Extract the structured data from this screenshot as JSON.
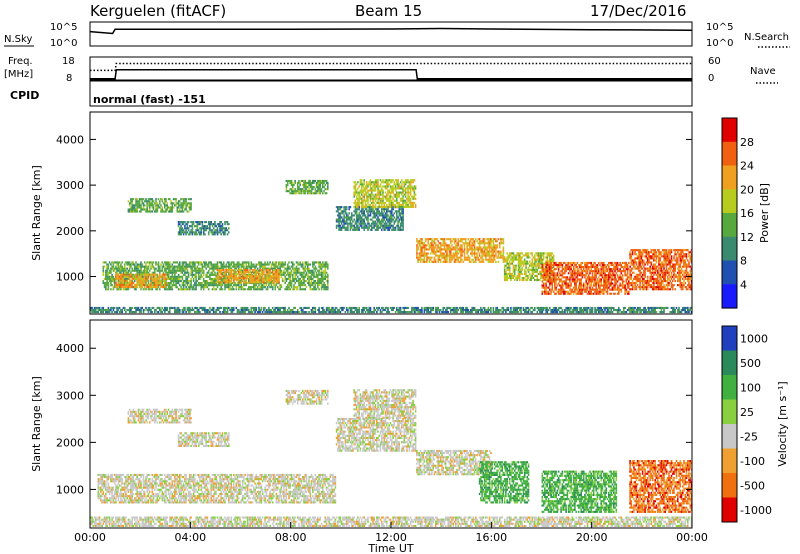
{
  "header": {
    "radar": "Kerguelen (fitACF)",
    "beam": "Beam 15",
    "date": "17/Dec/2016"
  },
  "top_panels": {
    "nsky_label": "N.Sky",
    "nsearch_label": "N.Search",
    "noise_ticks": [
      "10^5",
      "10^0"
    ],
    "freq_label": "Freq.",
    "freq_unit": "[MHz]",
    "freq_ticks": [
      "18",
      "8"
    ],
    "nave_label": "Nave",
    "nave_ticks": [
      "60",
      "0"
    ],
    "cpid_label": "CPID",
    "cpid_value": "normal (fast) -151"
  },
  "chart_data": [
    {
      "type": "line",
      "name": "noise",
      "series": [
        {
          "name": "N.Sky",
          "x": [
            0,
            0.9,
            1,
            4,
            8,
            12,
            14,
            16,
            20,
            24
          ],
          "y": [
            1000,
            400,
            3000,
            3000,
            3200,
            3500,
            4500,
            3500,
            2500,
            2000
          ]
        }
      ]
    },
    {
      "type": "line",
      "name": "frequency-nave",
      "series": [
        {
          "name": "Freq.",
          "x": [
            0,
            1,
            1.05,
            13,
            13.05,
            24
          ],
          "y": [
            8.5,
            8.5,
            12.5,
            12.5,
            8.5,
            8.5
          ]
        },
        {
          "name": "Nave",
          "x": [
            0,
            1,
            1.05,
            24
          ],
          "y": [
            25,
            25,
            43,
            43
          ]
        }
      ]
    },
    {
      "type": "heatmap",
      "name": "power",
      "xlabel": "",
      "ylabel": "Slant Range [km]",
      "xlim": [
        0,
        24
      ],
      "ylim": [
        180,
        4600
      ],
      "y_ticks": [
        "1000",
        "2000",
        "3000",
        "4000"
      ],
      "colorbar_label": "Power [dB]",
      "colorbar_ticks": [
        "28",
        "24",
        "20",
        "16",
        "12",
        "8",
        "4"
      ],
      "colors": [
        "#1a1aff",
        "#2050b0",
        "#3a8a70",
        "#58a840",
        "#b8cc20",
        "#f0a020",
        "#f06010",
        "#e00000"
      ],
      "regions": [
        {
          "x": [
            0.5,
            9.5
          ],
          "y": [
            700,
            1300
          ],
          "level": 14
        },
        {
          "x": [
            1.0,
            3.0
          ],
          "y": [
            750,
            1050
          ],
          "level": 22
        },
        {
          "x": [
            5.0,
            7.5
          ],
          "y": [
            850,
            1150
          ],
          "level": 20
        },
        {
          "x": [
            1.5,
            4.0
          ],
          "y": [
            2400,
            2700
          ],
          "level": 14
        },
        {
          "x": [
            3.5,
            5.5
          ],
          "y": [
            1900,
            2200
          ],
          "level": 10
        },
        {
          "x": [
            7.8,
            9.5
          ],
          "y": [
            2800,
            3100
          ],
          "level": 12
        },
        {
          "x": [
            9.8,
            12.5
          ],
          "y": [
            2000,
            2500
          ],
          "level": 10
        },
        {
          "x": [
            10.5,
            13.0
          ],
          "y": [
            2500,
            3100
          ],
          "level": 18
        },
        {
          "x": [
            13.0,
            16.5
          ],
          "y": [
            1300,
            1800
          ],
          "level": 22
        },
        {
          "x": [
            16.5,
            18.5
          ],
          "y": [
            900,
            1500
          ],
          "level": 18
        },
        {
          "x": [
            18.0,
            21.5
          ],
          "y": [
            600,
            1300
          ],
          "level": 26
        },
        {
          "x": [
            21.5,
            24.0
          ],
          "y": [
            700,
            1600
          ],
          "level": 26
        },
        {
          "x": [
            0.0,
            24.0
          ],
          "y": [
            200,
            300
          ],
          "level": 8
        }
      ]
    },
    {
      "type": "heatmap",
      "name": "velocity",
      "xlabel": "Time UT",
      "ylabel": "Slant Range [km]",
      "xlim": [
        0,
        24
      ],
      "ylim": [
        180,
        4600
      ],
      "x_ticks": [
        "00:00",
        "04:00",
        "08:00",
        "12:00",
        "16:00",
        "20:00",
        "00:00"
      ],
      "y_ticks": [
        "1000",
        "2000",
        "3000",
        "4000"
      ],
      "colorbar_label": "Velocity [m s⁻¹]",
      "colorbar_ticks": [
        "1000",
        "500",
        "100",
        "25",
        "-25",
        "-100",
        "-500",
        "-1000"
      ],
      "colors": [
        "#2040c0",
        "#2a8a5a",
        "#40b040",
        "#88d040",
        "#c8c8c8",
        "#f0a030",
        "#f07010",
        "#e00000"
      ],
      "regions": [
        {
          "x": [
            0.3,
            9.8
          ],
          "y": [
            700,
            1300
          ],
          "level": 0
        },
        {
          "x": [
            1.5,
            4.0
          ],
          "y": [
            2400,
            2700
          ],
          "level": 0
        },
        {
          "x": [
            3.5,
            5.5
          ],
          "y": [
            1900,
            2200
          ],
          "level": 0
        },
        {
          "x": [
            7.8,
            9.5
          ],
          "y": [
            2800,
            3100
          ],
          "level": 0
        },
        {
          "x": [
            9.8,
            13.0
          ],
          "y": [
            1800,
            2500
          ],
          "level": 0
        },
        {
          "x": [
            10.5,
            13.0
          ],
          "y": [
            2500,
            3100
          ],
          "level": 0
        },
        {
          "x": [
            13.0,
            16.0
          ],
          "y": [
            1300,
            1800
          ],
          "level": 0
        },
        {
          "x": [
            15.5,
            17.5
          ],
          "y": [
            700,
            1600
          ],
          "level": 150
        },
        {
          "x": [
            18.0,
            21.0
          ],
          "y": [
            500,
            1400
          ],
          "level": 120
        },
        {
          "x": [
            21.5,
            24.0
          ],
          "y": [
            500,
            1600
          ],
          "level": -200
        },
        {
          "x": [
            0.0,
            24.0
          ],
          "y": [
            200,
            400
          ],
          "level": 0
        }
      ]
    }
  ]
}
